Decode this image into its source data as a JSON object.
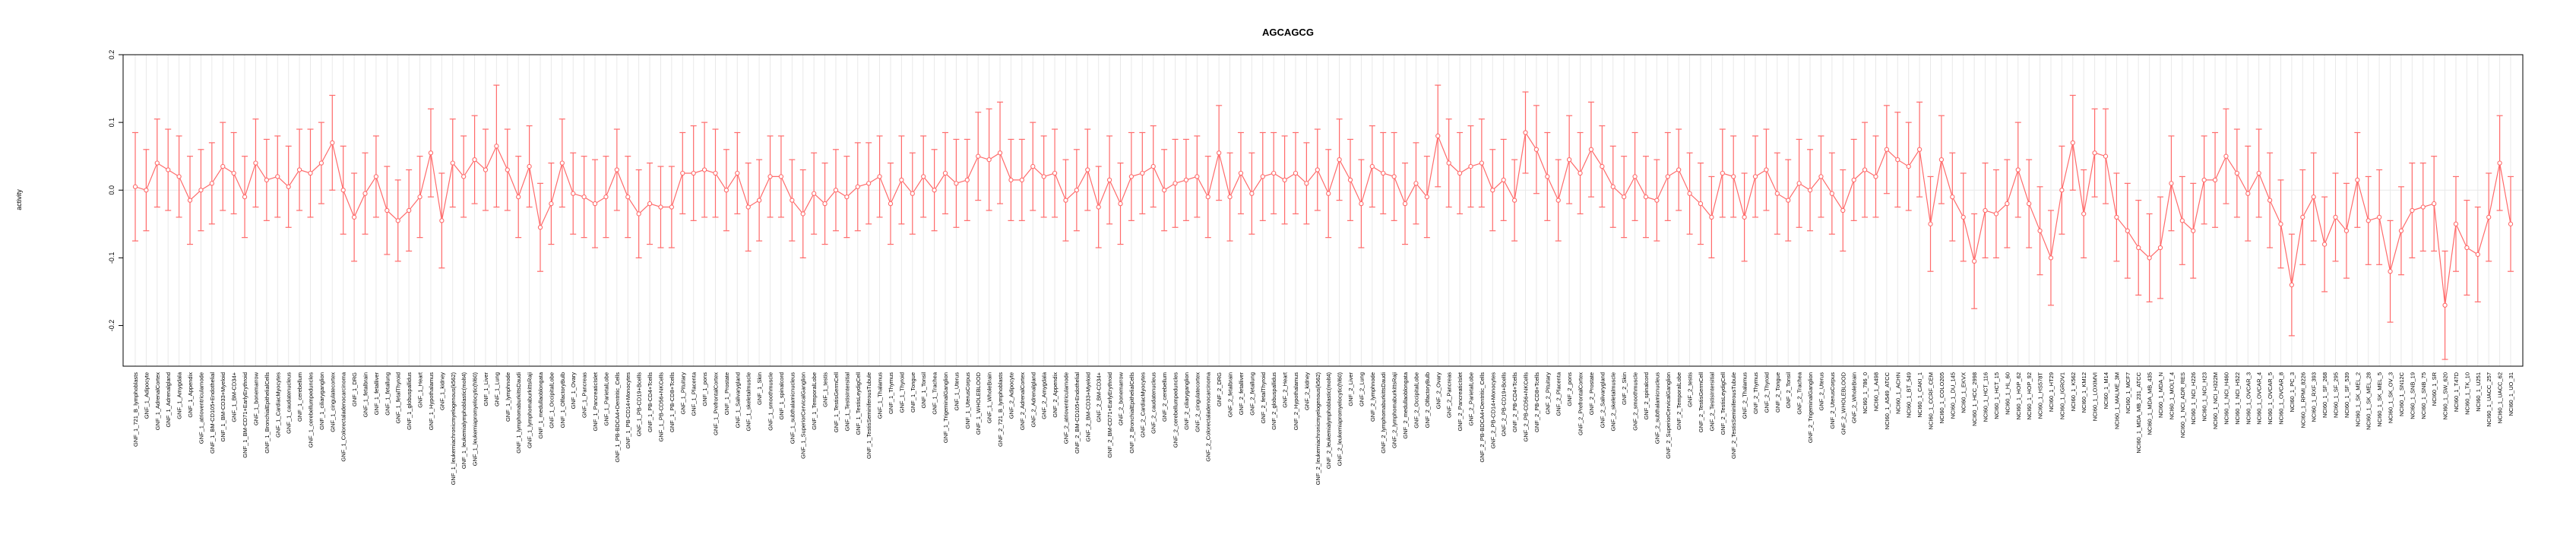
{
  "chart_data": {
    "type": "line",
    "title": "AGCAGCG",
    "xlabel": "",
    "ylabel": "activity",
    "ylim": [
      -0.26,
      0.2
    ],
    "yticks": [
      -0.2,
      -0.1,
      0.0,
      0.1,
      0.2
    ],
    "ytick_labels": [
      "-0.2",
      "-0.1",
      "0.0",
      "0.1",
      "0.2"
    ],
    "zero_line": true,
    "vertical_grid": true,
    "color": "#ff6b6b",
    "categories": [
      "GNF_1_721_B_lymphoblasts",
      "GNF_1_Adipocyte",
      "GNF_1_AdrenalCortex",
      "GNF_1_Adrenalgland",
      "GNF_1_Amygdala",
      "GNF_1_Appendix",
      "GNF_1_atrioventricularnode",
      "GNF_1_BM-CD105+Endothelial",
      "GNF_1_BM-CD33+Myeloid",
      "GNF_1_BM-CD34+",
      "GNF_1_BM-CD71+EarlyErythroid",
      "GNF_1_bonemarrow",
      "GNF_1_BronchialEpithelialCells",
      "GNF_1_CardiacMyocytes",
      "GNF_1_caudatenucleus",
      "GNF_1_cerebellum",
      "GNF_1_cerebellumpeduncles",
      "GNF_1_ciliaryganglion",
      "GNF_1_cingulatecortex",
      "GNF_1_Colorectaladenocarcinoma",
      "GNF_1_DRG",
      "GNF_1_fetalbrain",
      "GNF_1_fetalliver",
      "GNF_1_fetallung",
      "GNF_1_fetalThyroid",
      "GNF_1_globuspallidus",
      "GNF_1_Heart",
      "GNF_1_Hypothalamus",
      "GNF_1_kidney",
      "GNF_1_leukemiachronicmyelogenous(k562)",
      "GNF_1_leukemialymphoblastic(molt4)",
      "GNF_1_leukemiapromyelocytic(hl60)",
      "GNF_1_Liver",
      "GNF_1_Lung",
      "GNF_1_lymphnode",
      "GNF_1_lymphomaburkittsDaudi",
      "GNF_1_lymphomaburkittsRaji",
      "GNF_1_medullaoblongata",
      "GNF_1_OccipitalLobe",
      "GNF_1_OlfactoryBulb",
      "GNF_1_Ovary",
      "GNF_1_Pancreas",
      "GNF_1_PancreaticIslet",
      "GNF_1_ParietalLobe",
      "GNF_1_PB-BDCA4+Dentritic_Cells",
      "GNF_1_PB-CD14+Monocytes",
      "GNF_1_PB-CD19+Bcells",
      "GNF_1_PB-CD4+Tcells",
      "GNF_1_PB-CD56+NKCells",
      "GNF_1_PB-CD8+Tcells",
      "GNF_1_Pituitary",
      "GNF_1_Placenta",
      "GNF_1_pons",
      "GNF_1_PrefrontalCortex",
      "GNF_1_Prostate",
      "GNF_1_Salivarygland",
      "GNF_1_skeletalmuscle",
      "GNF_1_Skin",
      "GNF_1_smoothmuscle",
      "GNF_1_spinalcord",
      "GNF_1_subthalamicnucleus",
      "GNF_1_SuperiorCervicalGanglion",
      "GNF_1_TemporalLobe",
      "GNF_1_testis",
      "GNF_1_TestisGermCell",
      "GNF_1_TestisIntersitial",
      "GNF_1_TestisLeydigCell",
      "GNF_1_TestisSeminiferousTubule",
      "GNF_1_Thalamus",
      "GNF_1_Thymus",
      "GNF_1_Thyroid",
      "GNF_1_Tongue",
      "GNF_1_Tonsil",
      "GNF_1_Trachea",
      "GNF_1_TrigeminalGanglion",
      "GNF_1_Uterus",
      "GNF_1_UterusCorpus",
      "GNF_1_WHOLEBLOOD",
      "GNF_1_WholeBrain",
      "GNF_2_721_B_lymphoblasts",
      "GNF_2_Adipocyte",
      "GNF_2_AdrenalCortex",
      "GNF_2_Adrenalgland",
      "GNF_2_Amygdala",
      "GNF_2_Appendix",
      "GNF_2_atrioventricularnode",
      "GNF_2_BM-CD105+Endothelial",
      "GNF_2_BM-CD33+Myeloid",
      "GNF_2_BM-CD34+",
      "GNF_2_BM-CD71+EarlyErythroid",
      "GNF_2_bonemarrow",
      "GNF_2_BronchialEpithelialCells",
      "GNF_2_CardiacMyocytes",
      "GNF_2_caudatenucleus",
      "GNF_2_cerebellum",
      "GNF_2_cerebellumpeduncles",
      "GNF_2_ciliaryganglion",
      "GNF_2_cingulatecortex",
      "GNF_2_Colorectaladenocarcinoma",
      "GNF_2_DRG",
      "GNF_2_fetalbrain",
      "GNF_2_fetalliver",
      "GNF_2_fetallung",
      "GNF_2_fetalThyroid",
      "GNF_2_globuspallidus",
      "GNF_2_Heart",
      "GNF_2_Hypothalamus",
      "GNF_2_kidney",
      "GNF_2_leukemiachronicmyelogenous(k562)",
      "GNF_2_leukemialymphoblastic(molt4)",
      "GNF_2_leukemiapromyelocytic(hl60)",
      "GNF_2_Liver",
      "GNF_2_Lung",
      "GNF_2_lymphnode",
      "GNF_2_lymphomaburkittsDaudi",
      "GNF_2_lymphomaburkittsRaji",
      "GNF_2_medullaoblongata",
      "GNF_2_OccipitalLobe",
      "GNF_2_OlfactoryBulb",
      "GNF_2_Ovary",
      "GNF_2_Pancreas",
      "GNF_2_PancreaticIslet",
      "GNF_2_ParietalLobe",
      "GNF_2_PB-BDCA4+Dentritic_Cells",
      "GNF_2_PB-CD14+Monocytes",
      "GNF_2_PB-CD19+Bcells",
      "GNF_2_PB-CD4+Tcells",
      "GNF_2_PB-CD56+NKCells",
      "GNF_2_PB-CD8+Tcells",
      "GNF_2_Pituitary",
      "GNF_2_Placenta",
      "GNF_2_pons",
      "GNF_2_PrefrontalCortex",
      "GNF_2_Prostate",
      "GNF_2_Salivarygland",
      "GNF_2_skeletalmuscle",
      "GNF_2_Skin",
      "GNF_2_smoothmuscle",
      "GNF_2_spinalcord",
      "GNF_2_subthalamicnucleus",
      "GNF_2_SuperiorCervicalGanglion",
      "GNF_2_TemporalLobe",
      "GNF_2_testis",
      "GNF_2_TestisGermCell",
      "GNF_2_TestisIntersitial",
      "GNF_2_TestisLeydigCell",
      "GNF_2_TestisSeminiferousTubule",
      "GNF_2_Thalamus",
      "GNF_2_Thymus",
      "GNF_2_Thyroid",
      "GNF_2_Tongue",
      "GNF_2_Tonsil",
      "GNF_2_Trachea",
      "GNF_2_TrigeminalGanglion",
      "GNF_2_Uterus",
      "GNF_2_UterusCorpus",
      "GNF_2_WHOLEBLOOD",
      "GNF_2_WholeBrain",
      "NCI60_1_786_0",
      "NCI60_1_A498",
      "NCI60_1_A549_ATCC",
      "NCI60_1_ACHN",
      "NCI60_1_BT_549",
      "NCI60_1_CAKI_1",
      "NCI60_1_CCRF_CEM",
      "NCI60_1_COLO205",
      "NCI60_1_DU_145",
      "NCI60_1_EKVX",
      "NCI60_1_HCC_2998",
      "NCI60_1_HCT_116",
      "NCI60_1_HCT_15",
      "NCI60_1_HL_60",
      "NCI60_1_HOP_62",
      "NCI60_1_HOP_92",
      "NCI60_1_HS578T",
      "NCI60_1_HT29",
      "NCI60_1_IGROV1",
      "NCI60_1_K562",
      "NCI60_1_KM12",
      "NCI60_1_LOXIMVI",
      "NCI60_1_M14",
      "NCI60_1_MALME_3M",
      "NCI60_1_MCF7",
      "NCI60_1_MDA_MB_231_ATCC",
      "NCI60_1_MDA_MB_435",
      "NCI60_1_MDA_N",
      "NCI60_1_MOLT_4",
      "NCI60_1_NCI_ADR_RES",
      "NCI60_1_NCI_H226",
      "NCI60_1_NCI_H23",
      "NCI60_1_NCI_H322M",
      "NCI60_1_NCI_H460",
      "NCI60_1_NCI_H522",
      "NCI60_1_OVCAR_3",
      "NCI60_1_OVCAR_4",
      "NCI60_1_OVCAR_5",
      "NCI60_1_OVCAR_8",
      "NCI60_1_PC_3",
      "NCI60_1_RPMI_8226",
      "NCI60_1_RXF_393",
      "NCI60_1_SF_268",
      "NCI60_1_SF_295",
      "NCI60_1_SF_539",
      "NCI60_1_SK_MEL_2",
      "NCI60_1_SK_MEL_28",
      "NCI60_1_SK_MEL_5",
      "NCI60_1_SK_OV_3",
      "NCI60_1_SN12C",
      "NCI60_1_SNB_19",
      "NCI60_1_SNB_75",
      "NCI60_1_SR",
      "NCI60_1_SW_620",
      "NCI60_1_T47D",
      "NCI60_1_TK_10",
      "NCI60_1_U251",
      "NCI60_1_UACC_257",
      "NCI60_1_UACC_62",
      "NCI60_1_UO_31"
    ],
    "values": [
      0.005,
      0.0,
      0.04,
      0.03,
      0.02,
      -0.015,
      0.0,
      0.01,
      0.035,
      0.025,
      -0.01,
      0.04,
      0.015,
      0.02,
      0.005,
      0.03,
      0.025,
      0.04,
      0.07,
      0.0,
      -0.04,
      -0.005,
      0.02,
      -0.03,
      -0.045,
      -0.03,
      -0.01,
      0.055,
      -0.045,
      0.04,
      0.02,
      0.045,
      0.03,
      0.065,
      0.03,
      -0.01,
      0.035,
      -0.055,
      -0.02,
      0.04,
      -0.005,
      -0.01,
      -0.02,
      -0.01,
      0.03,
      -0.01,
      -0.035,
      -0.02,
      -0.025,
      -0.025,
      0.025,
      0.025,
      0.03,
      0.025,
      0.0,
      0.025,
      -0.025,
      -0.015,
      0.02,
      0.02,
      -0.015,
      -0.035,
      -0.005,
      -0.02,
      0.0,
      -0.01,
      0.005,
      0.01,
      0.02,
      -0.02,
      0.015,
      -0.005,
      0.02,
      0.0,
      0.025,
      0.01,
      0.015,
      0.05,
      0.045,
      0.055,
      0.015,
      0.015,
      0.035,
      0.02,
      0.025,
      -0.015,
      0.0,
      0.03,
      -0.025,
      0.015,
      -0.02,
      0.02,
      0.025,
      0.035,
      0.0,
      0.01,
      0.015,
      0.02,
      -0.01,
      0.055,
      -0.01,
      0.025,
      -0.005,
      0.02,
      0.025,
      0.015,
      0.025,
      0.01,
      0.03,
      -0.005,
      0.045,
      0.015,
      -0.02,
      0.035,
      0.025,
      0.02,
      -0.02,
      0.01,
      -0.01,
      0.08,
      0.04,
      0.025,
      0.035,
      0.04,
      0.0,
      0.015,
      -0.015,
      0.085,
      0.06,
      0.02,
      -0.015,
      0.045,
      0.025,
      0.06,
      0.035,
      0.005,
      -0.01,
      0.02,
      -0.01,
      -0.015,
      0.02,
      0.03,
      -0.005,
      -0.02,
      -0.04,
      0.025,
      0.02,
      -0.04,
      0.02,
      0.03,
      -0.005,
      -0.015,
      0.01,
      0.0,
      0.02,
      -0.005,
      -0.03,
      0.015,
      0.03,
      0.02,
      0.06,
      0.045,
      0.035,
      0.06,
      -0.05,
      0.045,
      -0.01,
      -0.04,
      -0.105,
      -0.03,
      -0.035,
      -0.02,
      0.03,
      -0.02,
      -0.06,
      -0.1,
      0.0,
      0.07,
      -0.035,
      0.055,
      0.05,
      -0.04,
      -0.06,
      -0.085,
      -0.1,
      -0.085,
      0.01,
      -0.045,
      -0.06,
      0.015,
      0.015,
      0.05,
      0.025,
      -0.005,
      0.025,
      -0.015,
      -0.05,
      -0.14,
      -0.04,
      -0.01,
      -0.08,
      -0.04,
      -0.06,
      0.015,
      -0.045,
      -0.04,
      -0.12,
      -0.06,
      -0.03,
      -0.025,
      -0.02,
      -0.17,
      -0.05,
      -0.085,
      -0.095,
      -0.04,
      0.04,
      -0.05
    ],
    "errors": [
      0.08,
      0.06,
      0.065,
      0.06,
      0.06,
      0.065,
      0.06,
      0.06,
      0.065,
      0.06,
      0.06,
      0.065,
      0.06,
      0.06,
      0.06,
      0.06,
      0.065,
      0.06,
      0.07,
      0.065,
      0.065,
      0.06,
      0.06,
      0.065,
      0.06,
      0.06,
      0.06,
      0.065,
      0.07,
      0.065,
      0.06,
      0.065,
      0.06,
      0.09,
      0.06,
      0.06,
      0.06,
      0.065,
      0.06,
      0.065,
      0.06,
      0.06,
      0.065,
      0.06,
      0.06,
      0.06,
      0.065,
      0.06,
      0.06,
      0.06,
      0.06,
      0.07,
      0.07,
      0.065,
      0.06,
      0.06,
      0.065,
      0.06,
      0.06,
      0.06,
      0.06,
      0.065,
      0.06,
      0.06,
      0.06,
      0.06,
      0.065,
      0.06,
      0.06,
      0.06,
      0.065,
      0.06,
      0.06,
      0.06,
      0.06,
      0.065,
      0.06,
      0.065,
      0.075,
      0.075,
      0.06,
      0.06,
      0.065,
      0.06,
      0.065,
      0.06,
      0.06,
      0.06,
      0.06,
      0.065,
      0.06,
      0.065,
      0.06,
      0.06,
      0.06,
      0.065,
      0.06,
      0.06,
      0.06,
      0.07,
      0.065,
      0.06,
      0.06,
      0.065,
      0.06,
      0.065,
      0.06,
      0.06,
      0.06,
      0.065,
      0.06,
      0.06,
      0.065,
      0.06,
      0.06,
      0.065,
      0.06,
      0.06,
      0.06,
      0.075,
      0.065,
      0.06,
      0.06,
      0.065,
      0.06,
      0.06,
      0.06,
      0.06,
      0.065,
      0.065,
      0.06,
      0.065,
      0.06,
      0.07,
      0.06,
      0.06,
      0.06,
      0.065,
      0.06,
      0.06,
      0.065,
      0.06,
      0.06,
      0.06,
      0.06,
      0.065,
      0.06,
      0.065,
      0.06,
      0.06,
      0.06,
      0.06,
      0.065,
      0.06,
      0.06,
      0.06,
      0.06,
      0.06,
      0.07,
      0.06,
      0.065,
      0.07,
      0.065,
      0.07,
      0.07,
      0.065,
      0.065,
      0.065,
      0.07,
      0.07,
      0.065,
      0.065,
      0.07,
      0.065,
      0.065,
      0.07,
      0.065,
      0.07,
      0.065,
      0.065,
      0.07,
      0.065,
      0.07,
      0.07,
      0.065,
      0.075,
      0.07,
      0.065,
      0.07,
      0.065,
      0.07,
      0.07,
      0.065,
      0.07,
      0.065,
      0.07,
      0.065,
      0.075,
      0.07,
      0.065,
      0.07,
      0.065,
      0.07,
      0.07,
      0.065,
      0.07,
      0.075,
      0.065,
      0.07,
      0.065,
      0.07,
      0.08,
      0.07,
      0.07,
      0.07,
      0.065,
      0.07,
      0.07
    ]
  }
}
